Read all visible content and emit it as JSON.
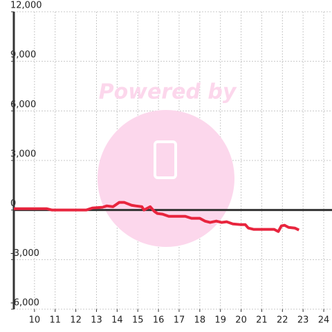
{
  "chart_data": {
    "type": "line",
    "watermark": "Powered by",
    "x": [
      9,
      10.6,
      10.85,
      12.5,
      12.8,
      13.3,
      13.5,
      13.8,
      14.1,
      14.35,
      14.7,
      14.9,
      15.2,
      15.3,
      15.6,
      15.8,
      15.95,
      16.2,
      16.5,
      17.3,
      17.6,
      18.0,
      18.25,
      18.5,
      18.8,
      19.05,
      19.3,
      19.6,
      19.95,
      20.2,
      20.35,
      20.6,
      21.6,
      21.8,
      21.95,
      22.1,
      22.3,
      22.6,
      22.8
    ],
    "series": [
      {
        "color": "#e8253e",
        "values": [
          80,
          80,
          0,
          0,
          120,
          170,
          250,
          200,
          460,
          460,
          290,
          250,
          200,
          0,
          200,
          -80,
          -210,
          -250,
          -380,
          -380,
          -500,
          -500,
          -670,
          -750,
          -670,
          -750,
          -710,
          -840,
          -880,
          -880,
          -1090,
          -1170,
          -1170,
          -1300,
          -960,
          -920,
          -1050,
          -1090,
          -1210
        ]
      }
    ],
    "xlim": [
      9,
      24.4
    ],
    "xticks": [
      10,
      11,
      12,
      13,
      14,
      15,
      16,
      17,
      18,
      19,
      20,
      21,
      22,
      23,
      24
    ],
    "ylim": [
      -6000,
      12000
    ],
    "yticks": [
      {
        "value": -6000,
        "label": "-6,000"
      },
      {
        "value": -3000,
        "label": "-3,000"
      },
      0,
      {
        "value": 3000,
        "label": "3,000"
      },
      {
        "value": 6000,
        "label": "6,000"
      },
      {
        "value": 9000,
        "label": "9,000"
      },
      {
        "value": 12000,
        "label": "12,000"
      }
    ],
    "grid": true
  }
}
